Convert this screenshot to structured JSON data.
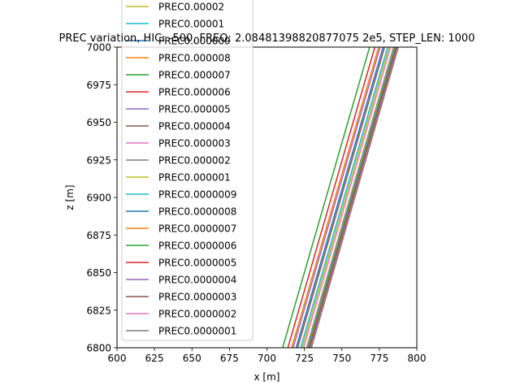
{
  "chart_data": {
    "type": "line",
    "title": "PREC variation, HIC: -500, FREQ: 2.08481398820877075 2e5, STEP_LEN: 1000",
    "xlabel": "x [m]",
    "ylabel": "z [m]",
    "xlim": [
      600,
      800
    ],
    "ylim": [
      6800,
      7000
    ],
    "x_ticks": [
      "600",
      "625",
      "650",
      "675",
      "700",
      "725",
      "750",
      "775",
      "800"
    ],
    "y_ticks": [
      "6800",
      "6825",
      "6850",
      "6875",
      "6900",
      "6925",
      "6950",
      "6975",
      "7000"
    ],
    "legend_position": "left, overlapping plot top",
    "series": [
      {
        "name": "PREC0.00002",
        "color": "#bcbd22",
        "x": [
          723.5,
          781.5
        ],
        "y": [
          6800,
          7000
        ]
      },
      {
        "name": "PREC0.00001",
        "color": "#17becf",
        "x": [
          722.5,
          780.5
        ],
        "y": [
          6800,
          7000
        ]
      },
      {
        "name": "PREC0.000009",
        "color": "#1f77b4",
        "x": [
          719.5,
          777.5
        ],
        "y": [
          6800,
          7000
        ]
      },
      {
        "name": "PREC0.000008",
        "color": "#ff7f0e",
        "x": [
          716.5,
          774.5
        ],
        "y": [
          6800,
          7000
        ]
      },
      {
        "name": "PREC0.000007",
        "color": "#2ca02c",
        "x": [
          710.5,
          768.5
        ],
        "y": [
          6800,
          7000
        ]
      },
      {
        "name": "PREC0.000006",
        "color": "#d62728",
        "x": [
          714.0,
          772.0
        ],
        "y": [
          6800,
          7000
        ]
      },
      {
        "name": "PREC0.000005",
        "color": "#9467bd",
        "x": [
          717.5,
          775.5
        ],
        "y": [
          6800,
          7000
        ]
      },
      {
        "name": "PREC0.000004",
        "color": "#8c564b",
        "x": [
          720.5,
          778.5
        ],
        "y": [
          6800,
          7000
        ]
      },
      {
        "name": "PREC0.000003",
        "color": "#e377c2",
        "x": [
          724.5,
          782.5
        ],
        "y": [
          6800,
          7000
        ]
      },
      {
        "name": "PREC0.000002",
        "color": "#7f7f7f",
        "x": [
          726.5,
          784.5
        ],
        "y": [
          6800,
          7000
        ]
      },
      {
        "name": "PREC0.000001",
        "color": "#bcbd22",
        "x": [
          727.0,
          785.0
        ],
        "y": [
          6800,
          7000
        ]
      },
      {
        "name": "PREC0.0000009",
        "color": "#17becf",
        "x": [
          727.3,
          785.3
        ],
        "y": [
          6800,
          7000
        ]
      },
      {
        "name": "PREC0.0000008",
        "color": "#1f77b4",
        "x": [
          727.6,
          785.6
        ],
        "y": [
          6800,
          7000
        ]
      },
      {
        "name": "PREC0.0000007",
        "color": "#ff7f0e",
        "x": [
          727.9,
          785.9
        ],
        "y": [
          6800,
          7000
        ]
      },
      {
        "name": "PREC0.0000006",
        "color": "#2ca02c",
        "x": [
          728.2,
          786.2
        ],
        "y": [
          6800,
          7000
        ]
      },
      {
        "name": "PREC0.0000005",
        "color": "#d62728",
        "x": [
          728.5,
          786.5
        ],
        "y": [
          6800,
          7000
        ]
      },
      {
        "name": "PREC0.0000004",
        "color": "#9467bd",
        "x": [
          728.8,
          786.8
        ],
        "y": [
          6800,
          7000
        ]
      },
      {
        "name": "PREC0.0000003",
        "color": "#8c564b",
        "x": [
          729.1,
          787.1
        ],
        "y": [
          6800,
          7000
        ]
      },
      {
        "name": "PREC0.0000002",
        "color": "#e377c2",
        "x": [
          729.4,
          787.4
        ],
        "y": [
          6800,
          7000
        ]
      },
      {
        "name": "PREC0.0000001",
        "color": "#7f7f7f",
        "x": [
          729.7,
          787.7
        ],
        "y": [
          6800,
          7000
        ]
      }
    ]
  }
}
